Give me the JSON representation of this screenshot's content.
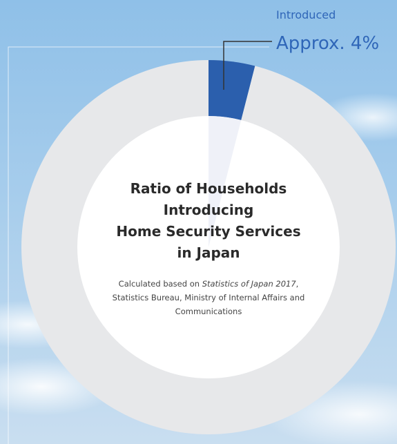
{
  "chart_data": {
    "type": "pie",
    "donut": true,
    "title": [
      "Ratio of Households",
      "Introducing",
      "Home Security Services",
      "in Japan"
    ],
    "subtitle": [
      "Calculated based on ",
      "Statistics of Japan 2017",
      ", Statistics Bureau, Ministry of Internal Affairs and Communications"
    ],
    "categories": [
      "Introduced",
      null
    ],
    "values": [
      4,
      96
    ],
    "value_labels": [
      "Approx. 4%",
      null
    ],
    "colors": [
      "#2b5fad",
      "#e7e8ea"
    ]
  }
}
